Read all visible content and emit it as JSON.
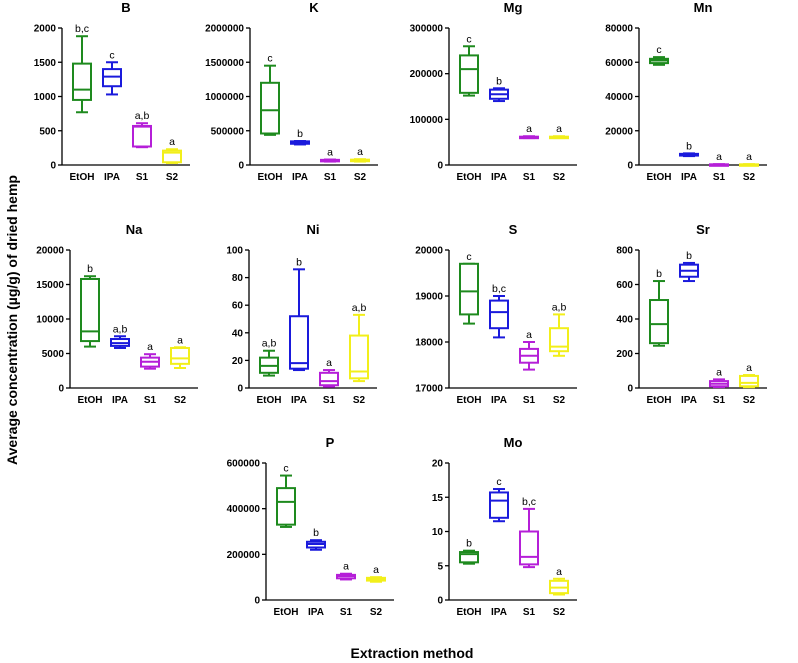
{
  "figure": {
    "ylabel": "Average concentration (µg/g) of dried hemp",
    "xlabel": "Extraction method"
  },
  "colors": {
    "EtOH": "#1e8a1e",
    "IPA": "#1a1adc",
    "S1": "#b51fd8",
    "S2": "#f2ef1a"
  },
  "chart_data": [
    {
      "type": "box",
      "title": "B",
      "categories": [
        "EtOH",
        "IPA",
        "S1",
        "S2"
      ],
      "ylim": [
        0,
        2000
      ],
      "yticks": [
        "0",
        "500",
        "1000",
        "1500",
        "2000"
      ],
      "ytick_values": [
        0,
        500,
        1000,
        1500,
        2000
      ],
      "series": [
        {
          "name": "EtOH",
          "min": 770,
          "q1": 950,
          "median": 1100,
          "q3": 1480,
          "max": 1880,
          "label": "b,c"
        },
        {
          "name": "IPA",
          "min": 1030,
          "q1": 1150,
          "median": 1290,
          "q3": 1400,
          "max": 1500,
          "label": "c"
        },
        {
          "name": "S1",
          "min": 260,
          "q1": 270,
          "median": 560,
          "q3": 570,
          "max": 610,
          "label": "a,b"
        },
        {
          "name": "S2",
          "min": 30,
          "q1": 40,
          "median": 180,
          "q3": 210,
          "max": 230,
          "label": "a"
        }
      ]
    },
    {
      "type": "box",
      "title": "K",
      "categories": [
        "EtOH",
        "IPA",
        "S1",
        "S2"
      ],
      "ylim": [
        0,
        2000000
      ],
      "yticks": [
        "0",
        "500000",
        "1000000",
        "1500000",
        "2000000"
      ],
      "ytick_values": [
        0,
        500000,
        1000000,
        1500000,
        2000000
      ],
      "series": [
        {
          "name": "EtOH",
          "min": 440000,
          "q1": 460000,
          "median": 800000,
          "q3": 1200000,
          "max": 1450000,
          "label": "c"
        },
        {
          "name": "IPA",
          "min": 300000,
          "q1": 310000,
          "median": 330000,
          "q3": 345000,
          "max": 350000,
          "label": "b"
        },
        {
          "name": "S1",
          "min": 50000,
          "q1": 55000,
          "median": 65000,
          "q3": 75000,
          "max": 80000,
          "label": "a"
        },
        {
          "name": "S2",
          "min": 50000,
          "q1": 55000,
          "median": 68000,
          "q3": 78000,
          "max": 85000,
          "label": "a"
        }
      ]
    },
    {
      "type": "box",
      "title": "Mg",
      "categories": [
        "EtOH",
        "IPA",
        "S1",
        "S2"
      ],
      "ylim": [
        0,
        300000
      ],
      "yticks": [
        "0",
        "100000",
        "200000",
        "300000"
      ],
      "ytick_values": [
        0,
        100000,
        200000,
        300000
      ],
      "series": [
        {
          "name": "EtOH",
          "min": 152000,
          "q1": 158000,
          "median": 210000,
          "q3": 240000,
          "max": 260000,
          "label": "c"
        },
        {
          "name": "IPA",
          "min": 140000,
          "q1": 145000,
          "median": 155000,
          "q3": 165000,
          "max": 168000,
          "label": "b"
        },
        {
          "name": "S1",
          "min": 59000,
          "q1": 60000,
          "median": 61000,
          "q3": 62000,
          "max": 63000,
          "label": "a"
        },
        {
          "name": "S2",
          "min": 59000,
          "q1": 60000,
          "median": 61000,
          "q3": 62000,
          "max": 63000,
          "label": "a"
        }
      ]
    },
    {
      "type": "box",
      "title": "Mn",
      "categories": [
        "EtOH",
        "IPA",
        "S1",
        "S2"
      ],
      "ylim": [
        0,
        80000
      ],
      "yticks": [
        "0",
        "20000",
        "40000",
        "60000",
        "80000"
      ],
      "ytick_values": [
        0,
        20000,
        40000,
        60000,
        80000
      ],
      "series": [
        {
          "name": "EtOH",
          "min": 58500,
          "q1": 59500,
          "median": 61000,
          "q3": 62000,
          "max": 63000,
          "label": "c"
        },
        {
          "name": "IPA",
          "min": 5200,
          "q1": 5500,
          "median": 6000,
          "q3": 6500,
          "max": 6800,
          "label": "b"
        },
        {
          "name": "S1",
          "min": 150,
          "q1": 200,
          "median": 300,
          "q3": 400,
          "max": 500,
          "label": "a"
        },
        {
          "name": "S2",
          "min": 150,
          "q1": 200,
          "median": 300,
          "q3": 400,
          "max": 500,
          "label": "a"
        }
      ]
    },
    {
      "type": "box",
      "title": "Na",
      "categories": [
        "EtOH",
        "IPA",
        "S1",
        "S2"
      ],
      "ylim": [
        0,
        20000
      ],
      "yticks": [
        "0",
        "5000",
        "10000",
        "15000",
        "20000"
      ],
      "ytick_values": [
        0,
        5000,
        10000,
        15000,
        20000
      ],
      "series": [
        {
          "name": "EtOH",
          "min": 6000,
          "q1": 6800,
          "median": 8200,
          "q3": 15800,
          "max": 16200,
          "label": "b"
        },
        {
          "name": "IPA",
          "min": 5800,
          "q1": 6100,
          "median": 6500,
          "q3": 7100,
          "max": 7500,
          "label": "a,b"
        },
        {
          "name": "S1",
          "min": 2800,
          "q1": 3100,
          "median": 3800,
          "q3": 4400,
          "max": 4900,
          "label": "a"
        },
        {
          "name": "S2",
          "min": 2900,
          "q1": 3500,
          "median": 4300,
          "q3": 5800,
          "max": 5900,
          "label": "a"
        }
      ]
    },
    {
      "type": "box",
      "title": "Ni",
      "categories": [
        "EtOH",
        "IPA",
        "S1",
        "S2"
      ],
      "ylim": [
        0,
        100
      ],
      "yticks": [
        "0",
        "20",
        "40",
        "60",
        "80",
        "100"
      ],
      "ytick_values": [
        0,
        20,
        40,
        60,
        80,
        100
      ],
      "series": [
        {
          "name": "EtOH",
          "min": 9,
          "q1": 11,
          "median": 16,
          "q3": 22,
          "max": 27,
          "label": "a,b"
        },
        {
          "name": "IPA",
          "min": 13,
          "q1": 14,
          "median": 18,
          "q3": 52,
          "max": 86,
          "label": "b"
        },
        {
          "name": "S1",
          "min": 1,
          "q1": 2,
          "median": 5,
          "q3": 11,
          "max": 13,
          "label": "a"
        },
        {
          "name": "S2",
          "min": 5,
          "q1": 7,
          "median": 12,
          "q3": 38,
          "max": 53,
          "label": "a,b"
        }
      ]
    },
    {
      "type": "box",
      "title": "S",
      "categories": [
        "EtOH",
        "IPA",
        "S1",
        "S2"
      ],
      "ylim": [
        17000,
        20000
      ],
      "yticks": [
        "17000",
        "18000",
        "19000",
        "20000"
      ],
      "ytick_values": [
        17000,
        18000,
        19000,
        20000
      ],
      "series": [
        {
          "name": "EtOH",
          "min": 18400,
          "q1": 18600,
          "median": 19100,
          "q3": 19700,
          "max": 19700,
          "label": "c"
        },
        {
          "name": "IPA",
          "min": 18100,
          "q1": 18300,
          "median": 18650,
          "q3": 18900,
          "max": 19000,
          "label": "b,c"
        },
        {
          "name": "S1",
          "min": 17400,
          "q1": 17550,
          "median": 17700,
          "q3": 17850,
          "max": 18000,
          "label": "a"
        },
        {
          "name": "S2",
          "min": 17700,
          "q1": 17800,
          "median": 17900,
          "q3": 18300,
          "max": 18600,
          "label": "a,b"
        }
      ]
    },
    {
      "type": "box",
      "title": "Sr",
      "categories": [
        "EtOH",
        "IPA",
        "S1",
        "S2"
      ],
      "ylim": [
        0,
        800
      ],
      "yticks": [
        "0",
        "200",
        "400",
        "600",
        "800"
      ],
      "ytick_values": [
        0,
        200,
        400,
        600,
        800
      ],
      "series": [
        {
          "name": "EtOH",
          "min": 245,
          "q1": 260,
          "median": 370,
          "q3": 510,
          "max": 620,
          "label": "b"
        },
        {
          "name": "IPA",
          "min": 620,
          "q1": 645,
          "median": 680,
          "q3": 715,
          "max": 725,
          "label": "b"
        },
        {
          "name": "S1",
          "min": 5,
          "q1": 10,
          "median": 25,
          "q3": 40,
          "max": 50,
          "label": "a"
        },
        {
          "name": "S2",
          "min": 5,
          "q1": 10,
          "median": 30,
          "q3": 70,
          "max": 75,
          "label": "a"
        }
      ]
    },
    {
      "type": "box",
      "title": "P",
      "categories": [
        "EtOH",
        "IPA",
        "S1",
        "S2"
      ],
      "ylim": [
        0,
        600000
      ],
      "yticks": [
        "0",
        "200000",
        "400000",
        "600000"
      ],
      "ytick_values": [
        0,
        200000,
        400000,
        600000
      ],
      "series": [
        {
          "name": "EtOH",
          "min": 320000,
          "q1": 330000,
          "median": 430000,
          "q3": 490000,
          "max": 545000,
          "label": "c"
        },
        {
          "name": "IPA",
          "min": 220000,
          "q1": 230000,
          "median": 245000,
          "q3": 255000,
          "max": 262000,
          "label": "b"
        },
        {
          "name": "S1",
          "min": 90000,
          "q1": 95000,
          "median": 105000,
          "q3": 110000,
          "max": 115000,
          "label": "a"
        },
        {
          "name": "S2",
          "min": 80000,
          "q1": 85000,
          "median": 92000,
          "q3": 97000,
          "max": 100000,
          "label": "a"
        }
      ]
    },
    {
      "type": "box",
      "title": "Mo",
      "categories": [
        "EtOH",
        "IPA",
        "S1",
        "S2"
      ],
      "ylim": [
        0,
        20
      ],
      "yticks": [
        "0",
        "5",
        "10",
        "15",
        "20"
      ],
      "ytick_values": [
        0,
        5,
        10,
        15,
        20
      ],
      "series": [
        {
          "name": "EtOH",
          "min": 5.3,
          "q1": 5.5,
          "median": 6.7,
          "q3": 7.0,
          "max": 7.2,
          "label": "b"
        },
        {
          "name": "IPA",
          "min": 11.5,
          "q1": 12,
          "median": 14.5,
          "q3": 15.7,
          "max": 16.2,
          "label": "c"
        },
        {
          "name": "S1",
          "min": 4.8,
          "q1": 5.2,
          "median": 6.3,
          "q3": 10,
          "max": 13.3,
          "label": "b,c"
        },
        {
          "name": "S2",
          "min": 0.8,
          "q1": 1,
          "median": 1.8,
          "q3": 2.8,
          "max": 3.1,
          "label": "a"
        }
      ]
    }
  ]
}
